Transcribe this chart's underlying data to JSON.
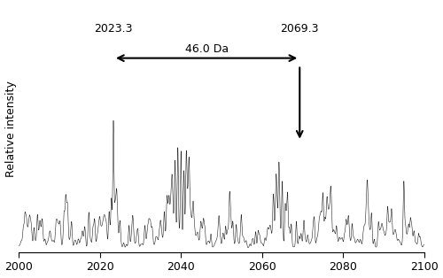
{
  "xlim": [
    2000,
    2100
  ],
  "xlabel_ticks": [
    2000,
    2020,
    2040,
    2060,
    2080,
    2100
  ],
  "ylabel": "Relative intensity",
  "peak1_mz": 2023.3,
  "peak2_mz": 2069.3,
  "arrow_label": "46.0 Da",
  "label1": "2023.3",
  "label2": "2069.3",
  "line_color": "#222222",
  "background_color": "#ffffff",
  "seed": 42
}
